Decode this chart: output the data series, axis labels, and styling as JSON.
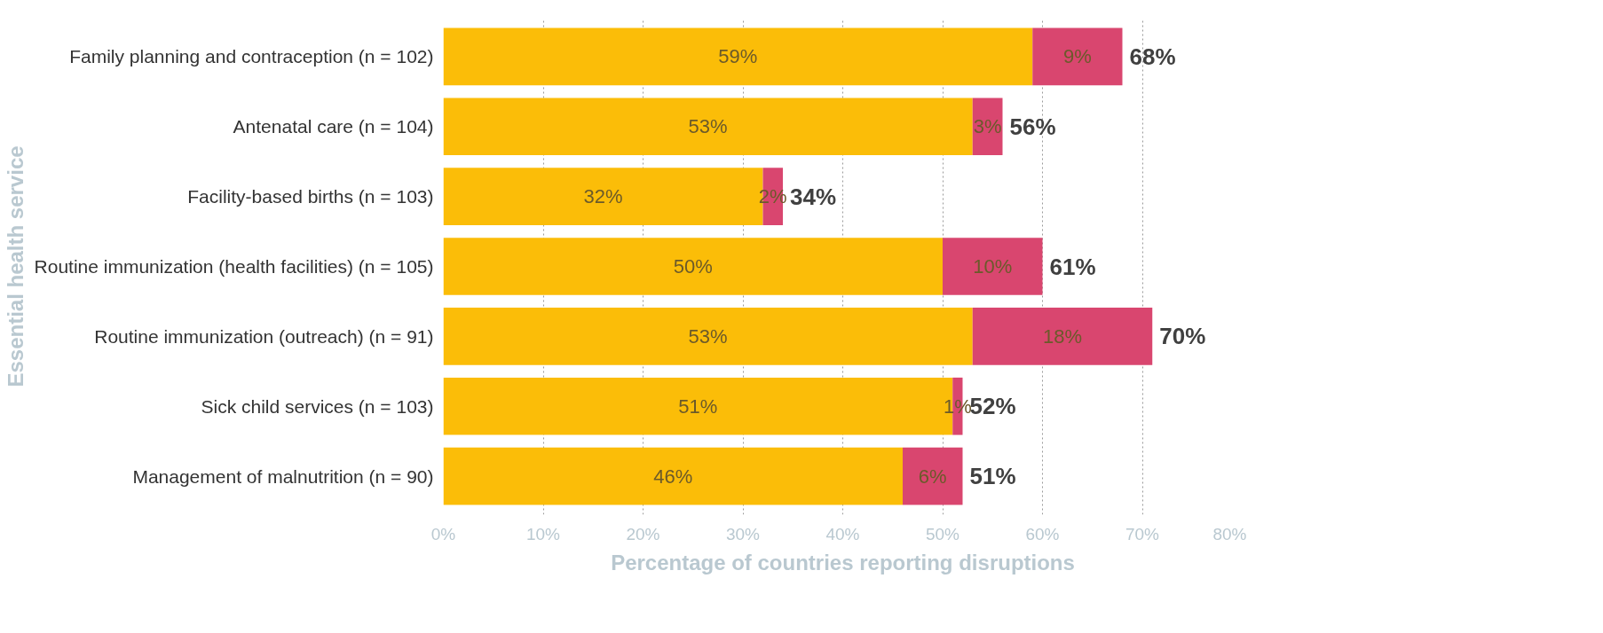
{
  "chart_data": {
    "type": "bar",
    "orientation": "horizontal",
    "stacked": true,
    "xlabel": "Percentage of countries reporting disruptions",
    "ylabel": "Essential health service",
    "categories": [
      "Family planning and contraception (n = 102)",
      "Antenatal care (n = 104)",
      "Facility-based births (n = 103)",
      "Routine immunization (health facilities) (n = 105)",
      "Routine immunization (outreach) (n = 91)",
      "Sick child services (n = 103)",
      "Management of malnutrition (n = 90)"
    ],
    "series": [
      {
        "color": "#fbbd08",
        "values": [
          59,
          53,
          32,
          50,
          53,
          51,
          46
        ],
        "value_labels": [
          "59%",
          "53%",
          "32%",
          "50%",
          "53%",
          "51%",
          "46%"
        ]
      },
      {
        "color": "#d9466f",
        "values": [
          9,
          3,
          2,
          10,
          18,
          1,
          6
        ],
        "value_labels": [
          "9%",
          "3%",
          "2%",
          "10%",
          "18%",
          "1%",
          "6%"
        ]
      }
    ],
    "totals": [
      "68%",
      "56%",
      "34%",
      "61%",
      "70%",
      "52%",
      "51%"
    ],
    "xlim": [
      0,
      80
    ],
    "xticks": [
      {
        "value": 0,
        "label": "0%"
      },
      {
        "value": 10,
        "label": "10%"
      },
      {
        "value": 20,
        "label": "20%"
      },
      {
        "value": 30,
        "label": "30%"
      },
      {
        "value": 40,
        "label": "40%"
      },
      {
        "value": 50,
        "label": "50%"
      },
      {
        "value": 60,
        "label": "60%"
      },
      {
        "value": 70,
        "label": "70%"
      },
      {
        "value": 80,
        "label": "80%"
      }
    ],
    "grid": "x"
  }
}
